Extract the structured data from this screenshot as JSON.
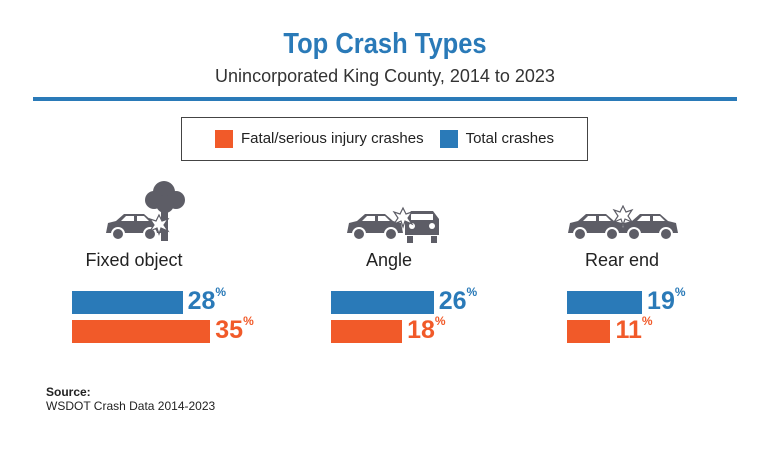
{
  "chart_data": {
    "type": "bar",
    "title": "Top Crash Types",
    "subtitle": "Unincorporated King County, 2014 to 2023",
    "categories": [
      "Fixed object",
      "Angle",
      "Rear end"
    ],
    "series": [
      {
        "name": "Total crashes",
        "color": "#2a7ab8",
        "values": [
          28,
          26,
          19
        ]
      },
      {
        "name": "Fatal/serious injury crashes",
        "color": "#f15a29",
        "values": [
          35,
          18,
          11
        ]
      }
    ],
    "unit": "%",
    "legend_order": [
      "Fatal/serious injury crashes",
      "Total crashes"
    ],
    "legend_placement": "top-center",
    "icons": [
      "car-hitting-tree-icon",
      "angle-collision-icon",
      "rear-end-collision-icon"
    ]
  },
  "source": {
    "label": "Source:",
    "text": "WSDOT Crash Data 2014-2023"
  }
}
